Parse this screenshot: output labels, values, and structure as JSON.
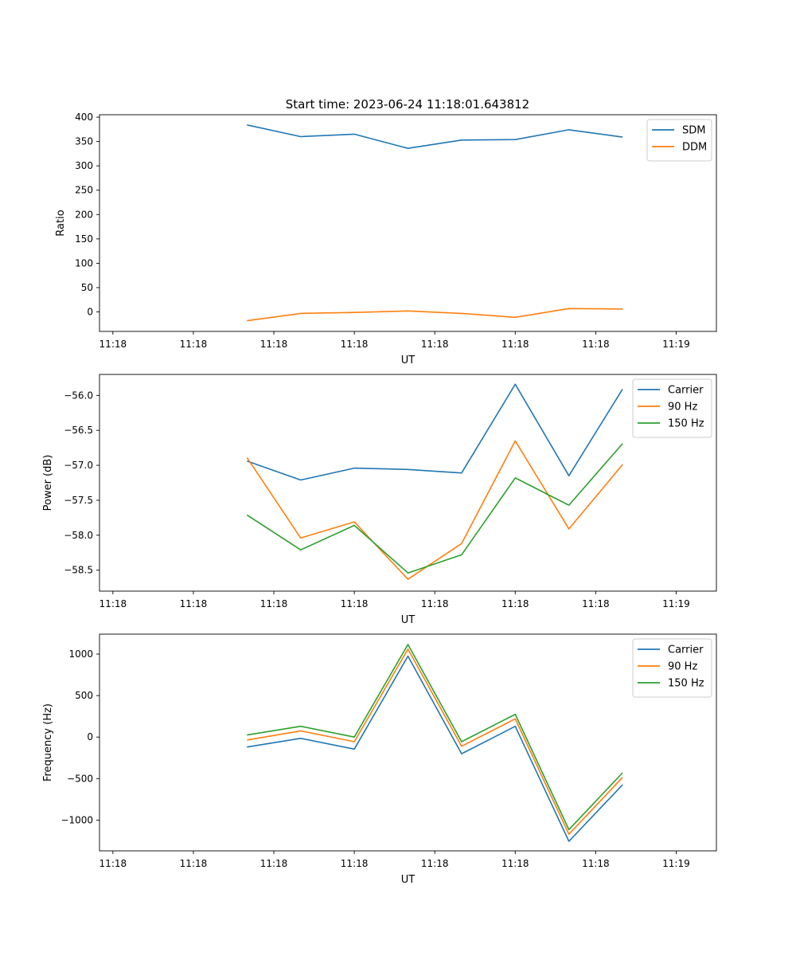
{
  "figure_title": "Start time: 2023-06-24 11:18:01.643812",
  "chart_data": [
    {
      "type": "line",
      "title": "",
      "xlabel": "UT",
      "ylabel": "Ratio",
      "x": [
        3.15,
        3.35,
        3.55,
        3.75,
        3.95,
        4.15,
        4.35,
        4.55
      ],
      "xlim": [
        2.6,
        4.9
      ],
      "x_ticks": [
        2.65,
        2.95,
        3.25,
        3.55,
        3.85,
        4.15,
        4.45,
        4.75
      ],
      "x_tick_labels": [
        "11:18",
        "11:18",
        "11:18",
        "11:18",
        "11:18",
        "11:18",
        "11:18",
        "11:19"
      ],
      "ylim": [
        -40,
        405
      ],
      "y_ticks": [
        0,
        50,
        100,
        150,
        200,
        250,
        300,
        350,
        400
      ],
      "y_tick_labels": [
        "0",
        "50",
        "100",
        "150",
        "200",
        "250",
        "300",
        "350",
        "400"
      ],
      "legend_position": "upper right",
      "grid": false,
      "series": [
        {
          "name": "SDM",
          "color": "#1f77b4",
          "values": [
            384,
            360,
            365,
            336,
            353,
            354,
            374,
            359
          ]
        },
        {
          "name": "DDM",
          "color": "#ff7f0e",
          "values": [
            -18,
            -3,
            -1,
            2,
            -3,
            -11,
            7,
            6
          ]
        }
      ]
    },
    {
      "type": "line",
      "title": "",
      "xlabel": "UT",
      "ylabel": "Power (dB)",
      "x": [
        3.15,
        3.35,
        3.55,
        3.75,
        3.95,
        4.15,
        4.35,
        4.55
      ],
      "xlim": [
        2.6,
        4.9
      ],
      "x_ticks": [
        2.65,
        2.95,
        3.25,
        3.55,
        3.85,
        4.15,
        4.45,
        4.75
      ],
      "x_tick_labels": [
        "11:18",
        "11:18",
        "11:18",
        "11:18",
        "11:18",
        "11:18",
        "11:18",
        "11:19"
      ],
      "ylim": [
        -58.8,
        -55.7
      ],
      "y_ticks": [
        -58.5,
        -58.0,
        -57.5,
        -57.0,
        -56.5,
        -56.0
      ],
      "y_tick_labels": [
        "−58.5",
        "−58.0",
        "−57.5",
        "−57.0",
        "−56.5",
        "−56.0"
      ],
      "legend_position": "upper right",
      "grid": false,
      "series": [
        {
          "name": "Carrier",
          "color": "#1f77b4",
          "values": [
            -56.94,
            -57.21,
            -57.04,
            -57.06,
            -57.11,
            -55.84,
            -57.15,
            -55.91
          ]
        },
        {
          "name": "90 Hz",
          "color": "#ff7f0e",
          "values": [
            -56.89,
            -58.04,
            -57.81,
            -58.63,
            -58.12,
            -56.65,
            -57.91,
            -56.99
          ]
        },
        {
          "name": "150 Hz",
          "color": "#2ca02c",
          "values": [
            -57.71,
            -58.21,
            -57.86,
            -58.54,
            -58.28,
            -57.18,
            -57.57,
            -56.69
          ]
        }
      ]
    },
    {
      "type": "line",
      "title": "",
      "xlabel": "UT",
      "ylabel": "Frequency (Hz)",
      "x": [
        3.15,
        3.35,
        3.55,
        3.75,
        3.95,
        4.15,
        4.35,
        4.55
      ],
      "xlim": [
        2.6,
        4.9
      ],
      "x_ticks": [
        2.65,
        2.95,
        3.25,
        3.55,
        3.85,
        4.15,
        4.45,
        4.75
      ],
      "x_tick_labels": [
        "11:18",
        "11:18",
        "11:18",
        "11:18",
        "11:18",
        "11:18",
        "11:18",
        "11:19"
      ],
      "ylim": [
        -1370,
        1240
      ],
      "y_ticks": [
        -1000,
        -500,
        0,
        500,
        1000
      ],
      "y_tick_labels": [
        "−1000",
        "−500",
        "0",
        "500",
        "1000"
      ],
      "legend_position": "upper right",
      "grid": false,
      "series": [
        {
          "name": "Carrier",
          "color": "#1f77b4",
          "values": [
            -120,
            -15,
            -145,
            975,
            -200,
            130,
            -1255,
            -575
          ]
        },
        {
          "name": "90 Hz",
          "color": "#ff7f0e",
          "values": [
            -35,
            75,
            -55,
            1060,
            -110,
            220,
            -1170,
            -485
          ]
        },
        {
          "name": "150 Hz",
          "color": "#2ca02c",
          "values": [
            25,
            130,
            0,
            1115,
            -55,
            275,
            -1115,
            -430
          ]
        }
      ]
    }
  ]
}
